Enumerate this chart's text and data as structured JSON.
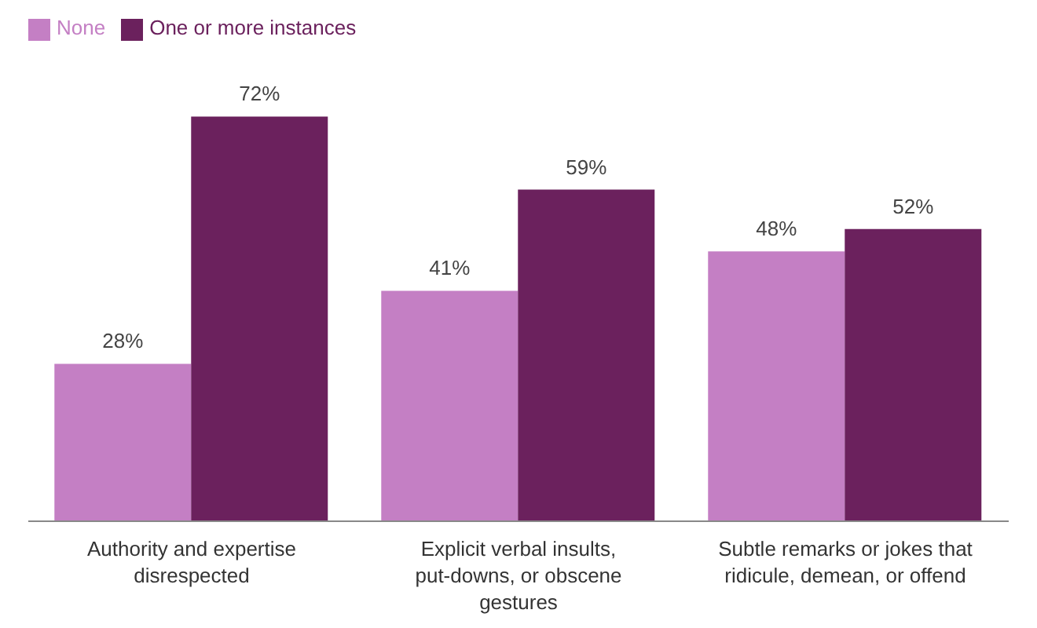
{
  "chart_data": {
    "type": "bar",
    "categories": [
      "Authority and expertise disrespected",
      "Explicit verbal insults, put-downs, or obscene gestures",
      "Subtle remarks or jokes that ridicule, demean, or offend"
    ],
    "series": [
      {
        "name": "None",
        "color": "#c47fc4",
        "values": [
          28,
          41,
          48
        ],
        "value_labels": [
          "28%",
          "41%",
          "48%"
        ]
      },
      {
        "name": "One or more instances",
        "color": "#6b215d",
        "values": [
          72,
          59,
          52
        ],
        "value_labels": [
          "72%",
          "59%",
          "52%"
        ]
      }
    ],
    "legend": "top left",
    "grid": false
  }
}
